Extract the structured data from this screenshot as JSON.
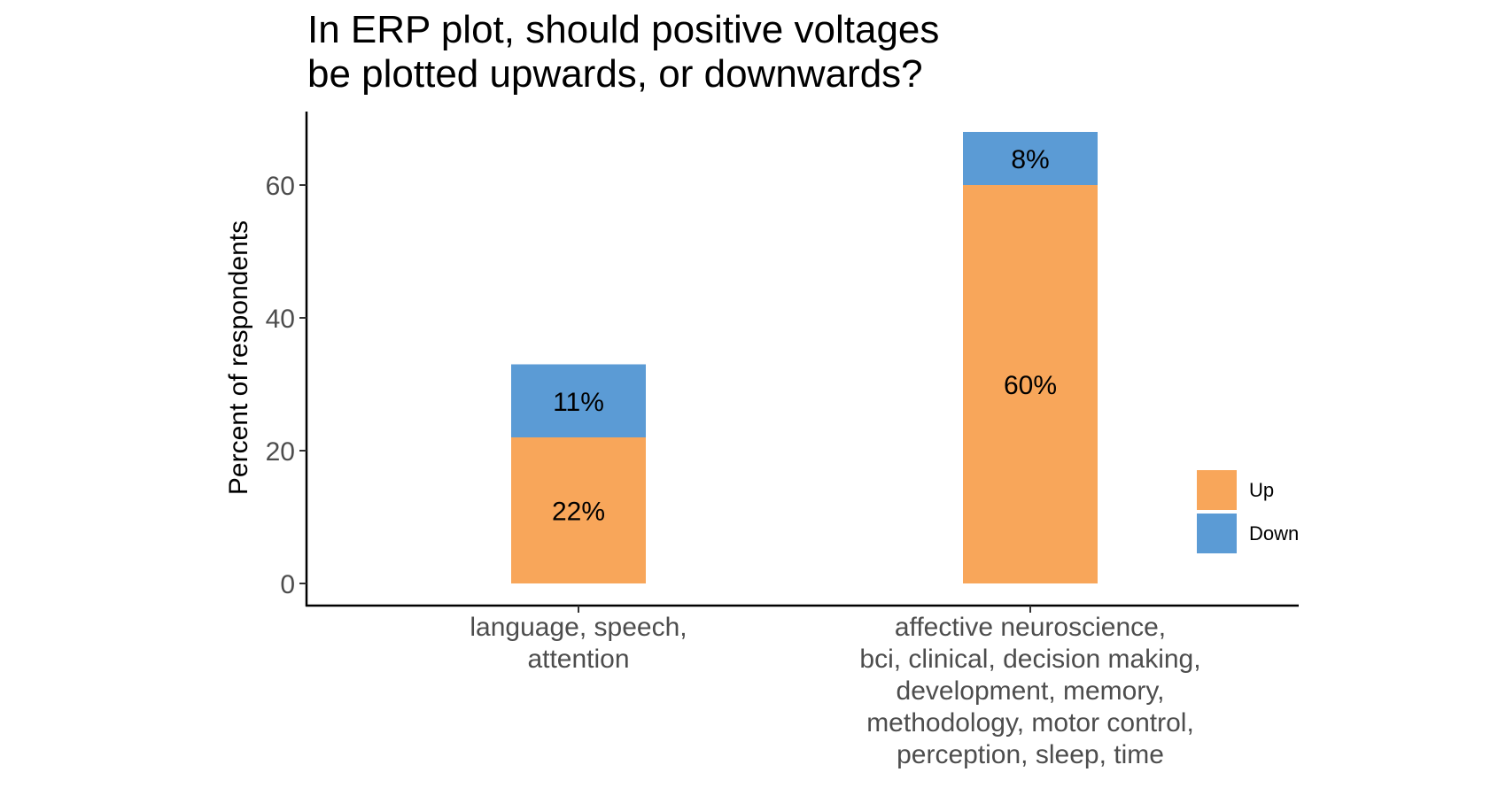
{
  "chart_data": {
    "type": "bar",
    "stacked": true,
    "title": [
      "In ERP plot, should positive voltages",
      "be plotted upwards, or downwards?"
    ],
    "xlabel": "",
    "ylabel": "Percent of respondents",
    "ylim": [
      0,
      70
    ],
    "yticks": [
      0,
      20,
      40,
      60
    ],
    "grid": false,
    "legend_position": "right",
    "categories": [
      [
        "language, speech,",
        "attention"
      ],
      [
        "affective neuroscience,",
        "bci, clinical, decision making,",
        "development, memory,",
        "methodology, motor control,",
        "perception, sleep, time"
      ]
    ],
    "series": [
      {
        "name": "Up",
        "color": "#f8a65a",
        "values": [
          22,
          60
        ],
        "labels": [
          "22%",
          "60%"
        ]
      },
      {
        "name": "Down",
        "color": "#5b9bd5",
        "values": [
          11,
          8
        ],
        "labels": [
          "11%",
          "8%"
        ]
      }
    ]
  }
}
